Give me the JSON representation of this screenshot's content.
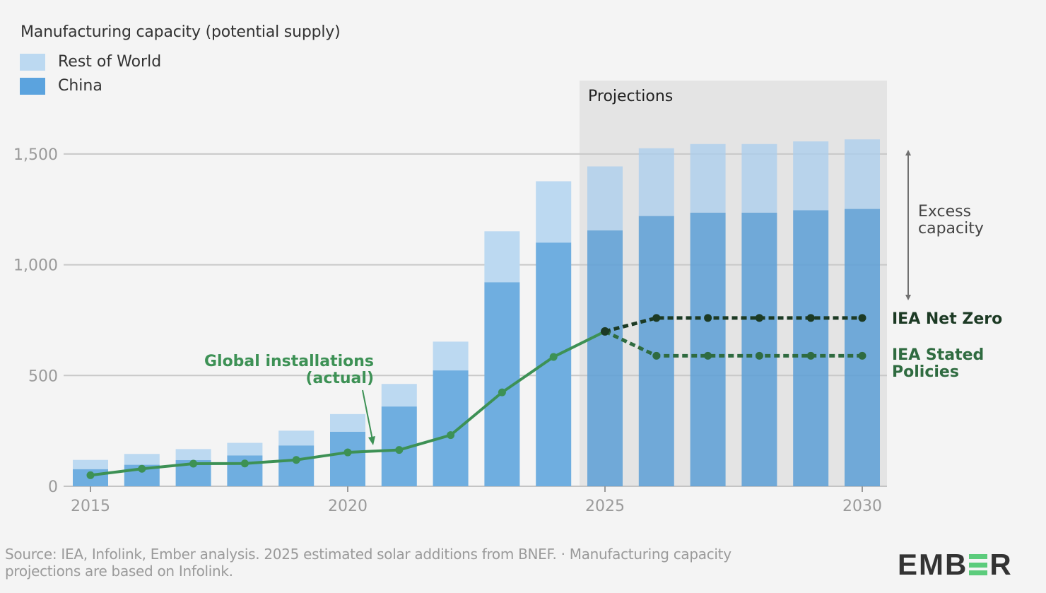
{
  "chart_data": {
    "type": "bar",
    "stacked": true,
    "title": "Manufacturing capacity (potential supply)",
    "xlabel": "",
    "ylabel": "",
    "ylim": [
      0,
      1500
    ],
    "yticks": [
      0,
      500,
      1000,
      1500
    ],
    "ytick_labels": [
      "0",
      "500",
      "1,000",
      "1,500"
    ],
    "xticks": [
      2015,
      2020,
      2025,
      2030
    ],
    "xtick_labels": [
      "2015",
      "2020",
      "2025",
      "2030"
    ],
    "grid": true,
    "legend_position": "top-left",
    "categories": [
      2015,
      2016,
      2017,
      2018,
      2019,
      2020,
      2021,
      2022,
      2023,
      2024,
      2025,
      2026,
      2027,
      2028,
      2029,
      2030
    ],
    "series": [
      {
        "name": "China",
        "type": "bar",
        "color": "#6faee0",
        "values": [
          77,
          97,
          118,
          139,
          184,
          246,
          360,
          523,
          921,
          1100,
          1155,
          1220,
          1235,
          1235,
          1246,
          1252
        ]
      },
      {
        "name": "Rest of World",
        "type": "bar",
        "color": "#bcd9f1",
        "values": [
          42,
          49,
          50,
          57,
          67,
          80,
          102,
          130,
          230,
          277,
          289,
          306,
          310,
          310,
          311,
          314
        ]
      },
      {
        "name": "Global installations (actual)",
        "type": "line",
        "color": "#3d9155",
        "x": [
          2015,
          2016,
          2017,
          2018,
          2019,
          2020,
          2021,
          2022,
          2023,
          2024,
          2025
        ],
        "values": [
          50,
          79,
          102,
          103,
          119,
          153,
          164,
          231,
          424,
          584,
          699
        ]
      },
      {
        "name": "IEA Net Zero",
        "type": "line",
        "style": "dashed",
        "color": "#1c3a24",
        "x": [
          2025,
          2026,
          2027,
          2028,
          2029,
          2030
        ],
        "values": [
          699,
          760,
          760,
          760,
          760,
          760
        ]
      },
      {
        "name": "IEA Stated Policies",
        "type": "line",
        "style": "dashed",
        "color": "#2f6b40",
        "x": [
          2025,
          2026,
          2027,
          2028,
          2029,
          2030
        ],
        "values": [
          699,
          589,
          589,
          589,
          589,
          589
        ]
      }
    ],
    "projection_region": {
      "label": "Projections",
      "from": 2025,
      "to": 2030
    },
    "annotations": [
      {
        "text_lines": [
          "Global installations",
          "(actual)"
        ],
        "color": "#3d9155",
        "points_to": 2021
      },
      {
        "text_lines": [
          "Excess",
          "capacity"
        ],
        "color": "#444444",
        "range": [
          760,
          1500
        ]
      },
      {
        "text_lines": [
          "IEA Net Zero"
        ],
        "color": "#1c3a24"
      },
      {
        "text_lines": [
          "IEA Stated",
          "Policies"
        ],
        "color": "#2f6b40"
      }
    ]
  },
  "legend": {
    "title": "Manufacturing capacity (potential supply)",
    "items": [
      {
        "label": "Rest of World",
        "color": "#bcd9f1"
      },
      {
        "label": "China",
        "color": "#5ba3de"
      }
    ]
  },
  "footer": {
    "source": "Source: IEA, Infolink, Ember analysis. 2025 estimated solar additions from BNEF. · Manufacturing capacity projections are based on Infolink.",
    "logo": {
      "before": "EMB",
      "after": "R",
      "brand_color": "#5ccc7c"
    }
  }
}
